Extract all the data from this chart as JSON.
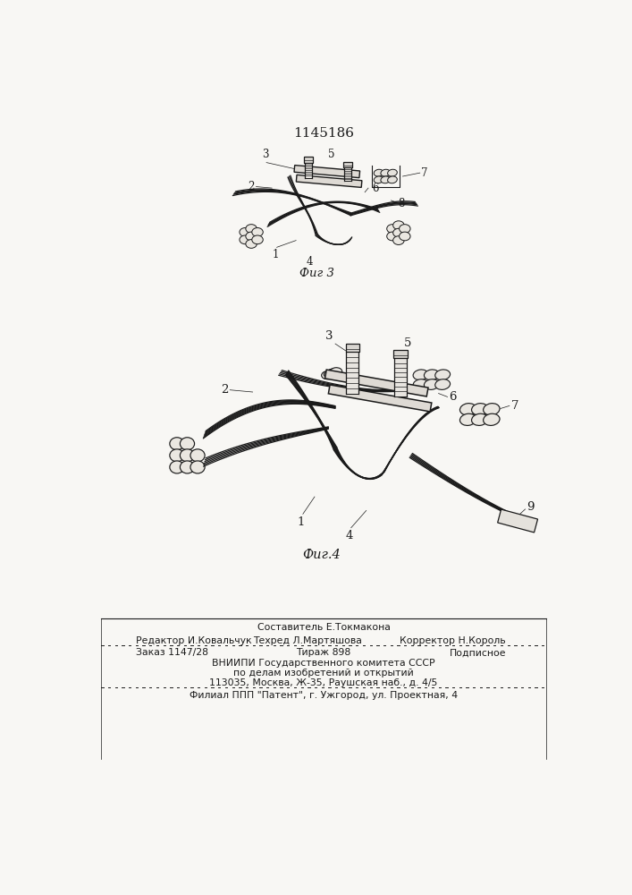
{
  "patent_number": "1145186",
  "background_color": "#f8f7f4",
  "line_color": "#1a1a1a",
  "fig3_label": "Фиг 3",
  "fig4_label": "Фиг.4",
  "footer_composer_label": "Составитель Е.Токмакона",
  "footer_editor_label": "Редактор И.Ковальчук",
  "footer_techred_label": "Техред Л.Мартяшова",
  "footer_corrector_label": "Корректор Н.Король",
  "footer_order": "Заказ 1147/28",
  "footer_tirazh": "Тираж 898",
  "footer_podpisnoe": "Подписное",
  "footer_vniipи": "ВНИИПИ Государственного комитета СССР",
  "footer_po_delam": "по делам изобретений и открытий",
  "footer_address": "113035, Москва, Ж-35, Раушская наб., д. 4/5",
  "footer_filial": "Филиал ППП \"Патент\", г. Ужгород, ул. Проектная, 4"
}
